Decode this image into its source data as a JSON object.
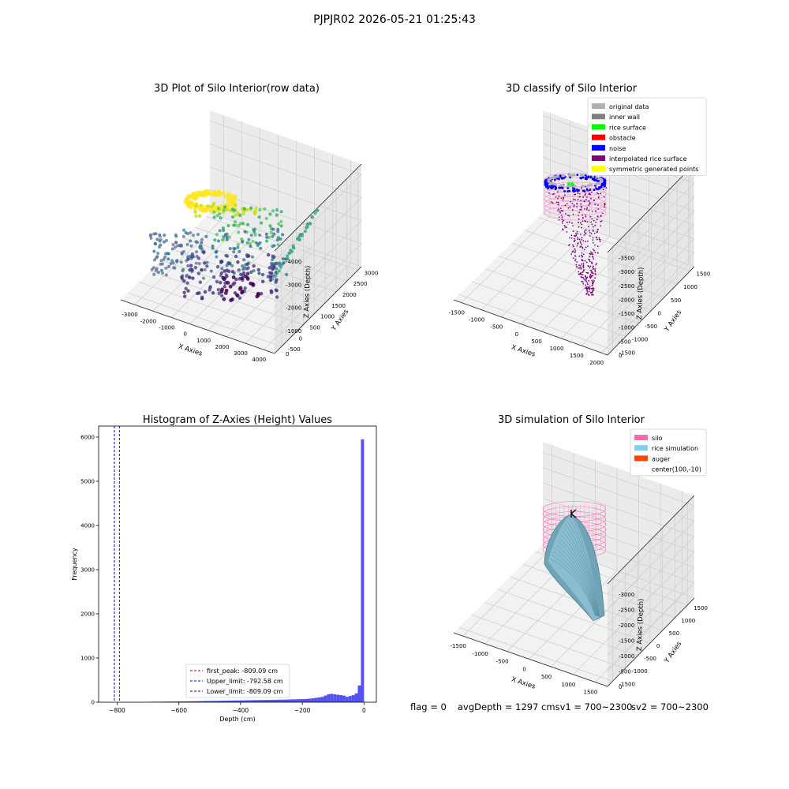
{
  "suptitle": "PJPJR02 2026-05-21 01:25:43",
  "status": {
    "flag": "flag = 0",
    "avg": "avgDepth = 1297 cmsv1 = 700~2300",
    "sv2": "sv2 = 700~2300"
  },
  "chart_data": [
    {
      "type": "scatter",
      "projection": "3d",
      "title": "3D Plot of Silo Interior(row data)",
      "xlabel": "X Axies",
      "ylabel": "Y Axies",
      "zlabel": "Z Axies (Depth)",
      "xticks": [
        "-3000",
        "-2000",
        "-1000",
        "0",
        "1000",
        "2000",
        "3000",
        "4000"
      ],
      "yticks": [
        "-500",
        "0",
        "500",
        "1000",
        "1500",
        "2000",
        "2500",
        "3000"
      ],
      "zticks": [
        "0",
        "-1000",
        "-2000",
        "-3000",
        "-4000"
      ],
      "colormap": "viridis",
      "colors": {
        "high": "#fde725",
        "mid": "#21918c",
        "low": "#440154"
      }
    },
    {
      "type": "scatter",
      "projection": "3d",
      "title": "3D classify of Silo Interior",
      "xlabel": "X Axies",
      "ylabel": "Y Axies",
      "zlabel": "Z Axies (Depth)",
      "xticks": [
        "-1500",
        "-1000",
        "-500",
        "0",
        "500",
        "1000",
        "1500",
        "2000"
      ],
      "yticks": [
        "-1500",
        "-1000",
        "-500",
        "0",
        "500",
        "1000",
        "1500"
      ],
      "zticks": [
        "0",
        "-500",
        "-1000",
        "-1500",
        "-2000",
        "-2500",
        "-3000",
        "-3500"
      ],
      "legend": [
        {
          "label": "original data",
          "color": "#b0b0b0"
        },
        {
          "label": "inner wall",
          "color": "#808080"
        },
        {
          "label": "rice surface",
          "color": "#00ff00"
        },
        {
          "label": "obstacle",
          "color": "#ff0000"
        },
        {
          "label": "noise",
          "color": "#0000ff"
        },
        {
          "label": "interpolated rice surface",
          "color": "#800080"
        },
        {
          "label": "symmetric generated points",
          "color": "#ffff00"
        }
      ],
      "legend_position": "upper right"
    },
    {
      "type": "bar",
      "title": "Histogram of Z-Axies (Height) Values",
      "xlabel": "Depth (cm)",
      "ylabel": "Frequency",
      "xlim": [
        -860,
        40
      ],
      "ylim": [
        0,
        6250
      ],
      "xticks": [
        -800,
        -600,
        -400,
        -200,
        0
      ],
      "yticks": [
        0,
        1000,
        2000,
        3000,
        4000,
        5000,
        6000
      ],
      "bar_color": "#4a4af0",
      "bins": [
        {
          "x0": -700,
          "x1": -690,
          "count": 8
        },
        {
          "x0": -690,
          "x1": -680,
          "count": 8
        },
        {
          "x0": -680,
          "x1": -670,
          "count": 10
        },
        {
          "x0": -670,
          "x1": -660,
          "count": 10
        },
        {
          "x0": -660,
          "x1": -650,
          "count": 12
        },
        {
          "x0": -650,
          "x1": -640,
          "count": 12
        },
        {
          "x0": -640,
          "x1": -630,
          "count": 14
        },
        {
          "x0": -630,
          "x1": -620,
          "count": 14
        },
        {
          "x0": -620,
          "x1": -610,
          "count": 15
        },
        {
          "x0": -610,
          "x1": -600,
          "count": 16
        },
        {
          "x0": -600,
          "x1": -590,
          "count": 18
        },
        {
          "x0": -590,
          "x1": -580,
          "count": 18
        },
        {
          "x0": -580,
          "x1": -570,
          "count": 20
        },
        {
          "x0": -570,
          "x1": -560,
          "count": 20
        },
        {
          "x0": -560,
          "x1": -550,
          "count": 22
        },
        {
          "x0": -550,
          "x1": -540,
          "count": 22
        },
        {
          "x0": -540,
          "x1": -530,
          "count": 25
        },
        {
          "x0": -530,
          "x1": -520,
          "count": 25
        },
        {
          "x0": -520,
          "x1": -510,
          "count": 28
        },
        {
          "x0": -510,
          "x1": -500,
          "count": 28
        },
        {
          "x0": -500,
          "x1": -490,
          "count": 30
        },
        {
          "x0": -490,
          "x1": -480,
          "count": 30
        },
        {
          "x0": -480,
          "x1": -470,
          "count": 32
        },
        {
          "x0": -470,
          "x1": -460,
          "count": 32
        },
        {
          "x0": -460,
          "x1": -450,
          "count": 35
        },
        {
          "x0": -450,
          "x1": -440,
          "count": 35
        },
        {
          "x0": -440,
          "x1": -430,
          "count": 38
        },
        {
          "x0": -430,
          "x1": -420,
          "count": 38
        },
        {
          "x0": -420,
          "x1": -410,
          "count": 40
        },
        {
          "x0": -410,
          "x1": -400,
          "count": 40
        },
        {
          "x0": -400,
          "x1": -390,
          "count": 42
        },
        {
          "x0": -390,
          "x1": -380,
          "count": 42
        },
        {
          "x0": -380,
          "x1": -370,
          "count": 45
        },
        {
          "x0": -370,
          "x1": -360,
          "count": 45
        },
        {
          "x0": -360,
          "x1": -350,
          "count": 48
        },
        {
          "x0": -350,
          "x1": -340,
          "count": 48
        },
        {
          "x0": -340,
          "x1": -330,
          "count": 50
        },
        {
          "x0": -330,
          "x1": -320,
          "count": 50
        },
        {
          "x0": -320,
          "x1": -310,
          "count": 52
        },
        {
          "x0": -310,
          "x1": -300,
          "count": 52
        },
        {
          "x0": -300,
          "x1": -290,
          "count": 55
        },
        {
          "x0": -290,
          "x1": -280,
          "count": 55
        },
        {
          "x0": -280,
          "x1": -270,
          "count": 58
        },
        {
          "x0": -270,
          "x1": -260,
          "count": 58
        },
        {
          "x0": -260,
          "x1": -250,
          "count": 60
        },
        {
          "x0": -250,
          "x1": -240,
          "count": 62
        },
        {
          "x0": -240,
          "x1": -230,
          "count": 64
        },
        {
          "x0": -230,
          "x1": -220,
          "count": 66
        },
        {
          "x0": -220,
          "x1": -210,
          "count": 68
        },
        {
          "x0": -210,
          "x1": -200,
          "count": 70
        },
        {
          "x0": -200,
          "x1": -190,
          "count": 72
        },
        {
          "x0": -190,
          "x1": -180,
          "count": 75
        },
        {
          "x0": -180,
          "x1": -170,
          "count": 80
        },
        {
          "x0": -170,
          "x1": -160,
          "count": 90
        },
        {
          "x0": -160,
          "x1": -150,
          "count": 100
        },
        {
          "x0": -150,
          "x1": -140,
          "count": 110
        },
        {
          "x0": -140,
          "x1": -130,
          "count": 120
        },
        {
          "x0": -130,
          "x1": -120,
          "count": 150
        },
        {
          "x0": -120,
          "x1": -110,
          "count": 180
        },
        {
          "x0": -110,
          "x1": -100,
          "count": 190
        },
        {
          "x0": -100,
          "x1": -90,
          "count": 180
        },
        {
          "x0": -90,
          "x1": -80,
          "count": 170
        },
        {
          "x0": -80,
          "x1": -70,
          "count": 160
        },
        {
          "x0": -70,
          "x1": -60,
          "count": 150
        },
        {
          "x0": -60,
          "x1": -50,
          "count": 120
        },
        {
          "x0": -50,
          "x1": -40,
          "count": 140
        },
        {
          "x0": -40,
          "x1": -30,
          "count": 160
        },
        {
          "x0": -30,
          "x1": -20,
          "count": 200
        },
        {
          "x0": -20,
          "x1": -10,
          "count": 380
        },
        {
          "x0": -10,
          "x1": 0,
          "count": 5950
        }
      ],
      "vlines": [
        {
          "label": "first_peak: -809.09 cm",
          "x": -809.09,
          "color": "#cc0000"
        },
        {
          "label": "Upper_limit: -792.58 cm",
          "x": -792.58,
          "color": "#0000cc"
        },
        {
          "label": "Lower_limit: -809.09 cm",
          "x": -809.09,
          "color": "#0000cc"
        }
      ],
      "legend_position": "lower center"
    },
    {
      "type": "surface",
      "projection": "3d",
      "title": "3D simulation of Silo Interior",
      "xlabel": "X Axies",
      "ylabel": "Y Axies",
      "zlabel": "Z Axies (Depth)",
      "xticks": [
        "-1500",
        "-1000",
        "-500",
        "0",
        "500",
        "1000",
        "1500"
      ],
      "yticks": [
        "-1500",
        "-1000",
        "-500",
        "0",
        "500",
        "1000",
        "1500"
      ],
      "zticks": [
        "0",
        "-500",
        "-1000",
        "-1500",
        "-2000",
        "-2500",
        "-3000"
      ],
      "legend": [
        {
          "label": "silo",
          "color": "#ff69b4"
        },
        {
          "label": "rice simulation",
          "color": "#87ceeb"
        },
        {
          "label": "auger",
          "color": "#ff4500"
        },
        {
          "label": "center(100,-10)",
          "color": "none"
        }
      ],
      "legend_position": "upper right"
    }
  ]
}
